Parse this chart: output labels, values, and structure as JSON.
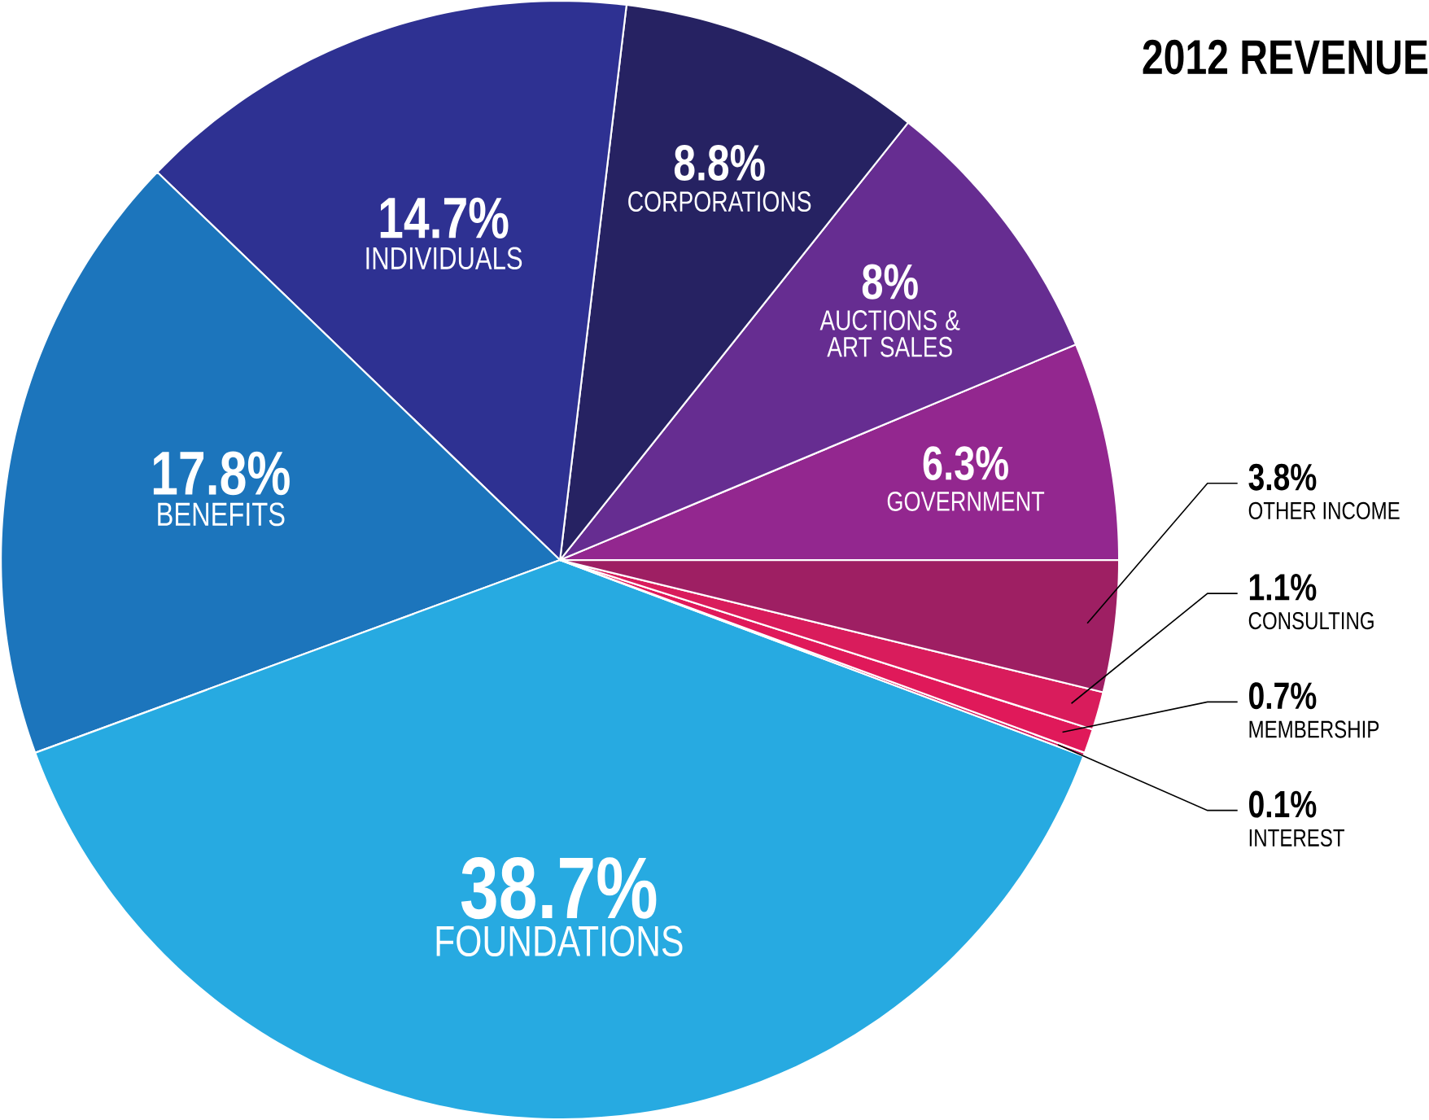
{
  "chart_data": {
    "type": "pie",
    "title": "2012 REVENUE",
    "categories": [
      "GOVERNMENT",
      "AUCTIONS & ART SALES",
      "CORPORATIONS",
      "INDIVIDUALS",
      "BENEFITS",
      "FOUNDATIONS",
      "INTEREST",
      "MEMBERSHIP",
      "CONSULTING",
      "OTHER INCOME"
    ],
    "values": [
      6.3,
      8,
      8.8,
      14.7,
      17.8,
      38.7,
      0.1,
      0.7,
      1.1,
      3.8
    ],
    "value_labels": [
      "6.3%",
      "8%",
      "8.8%",
      "14.7%",
      "17.8%",
      "38.7%",
      "0.1%",
      "0.7%",
      "1.1%",
      "3.8%"
    ],
    "colors": [
      "#93278f",
      "#662d91",
      "#262262",
      "#2e3192",
      "#1c75bc",
      "#27aae1",
      "#d4145a",
      "#e0195a",
      "#d91c5c",
      "#9e1f63"
    ]
  }
}
